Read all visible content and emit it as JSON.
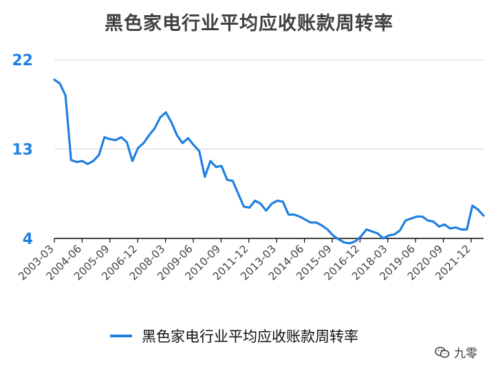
{
  "colors": {
    "series": "#1f7fe0",
    "axis_labels": "#1f7fe0",
    "grid": "#d9d9d9",
    "axis": "#000000",
    "title": "#404040"
  },
  "watermark": {
    "icon": "wechat-icon",
    "text": "九零"
  },
  "chart_data": {
    "type": "line",
    "title": "黑色家电行业平均应收账款周转率",
    "xlabel": "",
    "ylabel": "",
    "ylim": [
      4,
      22
    ],
    "yticks": [
      4,
      13,
      22
    ],
    "grid": true,
    "legend_position": "bottom",
    "xtick_labels": [
      "2003-03",
      "2004-06",
      "2005-09",
      "2006-12",
      "2008-03",
      "2009-06",
      "2010-09",
      "2011-12",
      "2013-03",
      "2014-06",
      "2015-09",
      "2016-12",
      "2018-03",
      "2019-06",
      "2020-09",
      "2021-12"
    ],
    "series": [
      {
        "name": "黑色家电行业平均应收账款周转率",
        "values": [
          20.0,
          19.6,
          18.4,
          11.9,
          11.7,
          11.8,
          11.5,
          11.8,
          12.4,
          14.2,
          14.0,
          13.9,
          14.2,
          13.7,
          11.8,
          13.1,
          13.6,
          14.4,
          15.1,
          16.2,
          16.7,
          15.7,
          14.4,
          13.6,
          14.1,
          13.4,
          12.8,
          10.2,
          11.8,
          11.2,
          11.3,
          9.9,
          9.8,
          8.5,
          7.2,
          7.1,
          7.8,
          7.5,
          6.8,
          7.5,
          7.8,
          7.7,
          6.4,
          6.4,
          6.2,
          5.9,
          5.6,
          5.6,
          5.3,
          4.9,
          4.3,
          3.9,
          3.6,
          3.5,
          3.7,
          4.2,
          4.9,
          4.7,
          4.5,
          4.0,
          4.3,
          4.4,
          4.8,
          5.8,
          6.0,
          6.2,
          6.2,
          5.8,
          5.7,
          5.2,
          5.4,
          5.0,
          5.1,
          4.9,
          4.9,
          7.3,
          6.9,
          6.3
        ]
      }
    ]
  }
}
